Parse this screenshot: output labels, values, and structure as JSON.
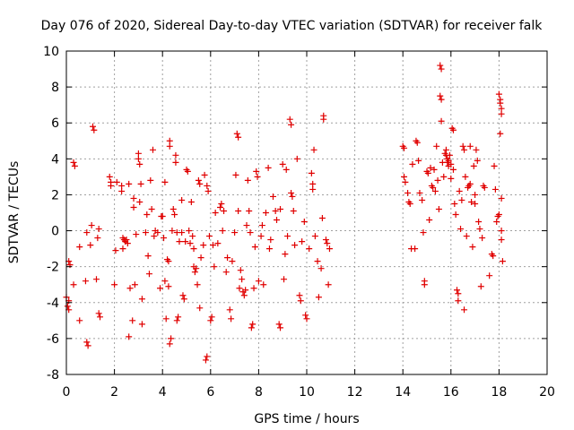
{
  "chart_data": {
    "type": "scatter",
    "title": "Day 076 of 2020, Sidereal Day-to-day VTEC variation (SDTVAR) for receiver falk",
    "xlabel": "GPS time / hours",
    "ylabel": "SDTVAR / TECUs",
    "xlim": [
      0,
      20
    ],
    "ylim": [
      -8,
      10
    ],
    "xticks": [
      "0",
      "2",
      "4",
      "6",
      "8",
      "10",
      "12",
      "14",
      "16",
      "18",
      "20"
    ],
    "yticks": [
      "-8",
      "-6",
      "-4",
      "-2",
      "0",
      "2",
      "4",
      "6",
      "8",
      "10"
    ],
    "grid": true,
    "marker": "+",
    "color": "#e00000",
    "points": [
      [
        0.0,
        -3.7
      ],
      [
        0.05,
        -4.2
      ],
      [
        0.1,
        -4.4
      ],
      [
        0.1,
        -1.7
      ],
      [
        0.15,
        -1.9
      ],
      [
        0.1,
        -3.9
      ],
      [
        0.3,
        3.8
      ],
      [
        0.35,
        3.6
      ],
      [
        0.3,
        -3.0
      ],
      [
        0.55,
        -5.0
      ],
      [
        0.55,
        -0.9
      ],
      [
        0.8,
        -2.8
      ],
      [
        0.85,
        -6.2
      ],
      [
        0.9,
        -6.4
      ],
      [
        0.85,
        -0.1
      ],
      [
        1.0,
        -0.8
      ],
      [
        1.05,
        0.3
      ],
      [
        1.1,
        5.8
      ],
      [
        1.15,
        5.6
      ],
      [
        1.25,
        -2.7
      ],
      [
        1.3,
        -0.4
      ],
      [
        1.35,
        0.1
      ],
      [
        1.35,
        -4.6
      ],
      [
        1.4,
        -4.8
      ],
      [
        1.8,
        3.0
      ],
      [
        1.85,
        2.7
      ],
      [
        1.85,
        2.5
      ],
      [
        2.0,
        -3.0
      ],
      [
        2.05,
        -1.1
      ],
      [
        2.1,
        2.7
      ],
      [
        2.3,
        2.2
      ],
      [
        2.3,
        2.5
      ],
      [
        2.35,
        -1.0
      ],
      [
        2.35,
        -0.4
      ],
      [
        2.4,
        -0.5
      ],
      [
        2.45,
        -0.6
      ],
      [
        2.5,
        -0.5
      ],
      [
        2.55,
        -0.7
      ],
      [
        2.6,
        2.6
      ],
      [
        2.65,
        -3.2
      ],
      [
        2.6,
        -5.9
      ],
      [
        2.75,
        -5.0
      ],
      [
        2.8,
        1.8
      ],
      [
        2.8,
        1.3
      ],
      [
        2.85,
        -3.0
      ],
      [
        2.9,
        -0.2
      ],
      [
        3.0,
        4.3
      ],
      [
        3.0,
        4.0
      ],
      [
        3.05,
        3.7
      ],
      [
        3.05,
        1.6
      ],
      [
        3.1,
        2.6
      ],
      [
        3.15,
        -5.2
      ],
      [
        3.15,
        -3.8
      ],
      [
        3.3,
        -0.1
      ],
      [
        3.4,
        -1.4
      ],
      [
        3.35,
        0.9
      ],
      [
        3.45,
        -2.4
      ],
      [
        3.5,
        2.8
      ],
      [
        3.55,
        1.2
      ],
      [
        3.6,
        4.5
      ],
      [
        3.65,
        -0.3
      ],
      [
        3.7,
        0.0
      ],
      [
        3.8,
        -0.1
      ],
      [
        3.9,
        -3.2
      ],
      [
        3.95,
        0.8
      ],
      [
        4.0,
        0.8
      ],
      [
        4.05,
        -0.4
      ],
      [
        4.1,
        -2.8
      ],
      [
        4.1,
        2.7
      ],
      [
        4.15,
        -4.9
      ],
      [
        4.2,
        -1.6
      ],
      [
        4.25,
        -1.7
      ],
      [
        4.25,
        -3.1
      ],
      [
        4.3,
        5.0
      ],
      [
        4.3,
        4.7
      ],
      [
        4.35,
        -6.0
      ],
      [
        4.3,
        -6.3
      ],
      [
        4.4,
        0.0
      ],
      [
        4.45,
        1.2
      ],
      [
        4.5,
        0.9
      ],
      [
        4.55,
        4.2
      ],
      [
        4.55,
        3.8
      ],
      [
        4.6,
        -5.0
      ],
      [
        4.65,
        -4.8
      ],
      [
        4.6,
        -0.1
      ],
      [
        4.7,
        -0.6
      ],
      [
        4.8,
        -0.1
      ],
      [
        4.8,
        1.7
      ],
      [
        4.85,
        -3.6
      ],
      [
        4.9,
        -3.8
      ],
      [
        4.95,
        -0.6
      ],
      [
        5.0,
        3.4
      ],
      [
        5.05,
        3.3
      ],
      [
        5.1,
        0.0
      ],
      [
        5.15,
        -0.7
      ],
      [
        5.2,
        1.6
      ],
      [
        5.25,
        -0.3
      ],
      [
        5.3,
        -1.0
      ],
      [
        5.3,
        -2.0
      ],
      [
        5.35,
        -2.3
      ],
      [
        5.4,
        -2.1
      ],
      [
        5.45,
        -3.0
      ],
      [
        5.5,
        2.8
      ],
      [
        5.55,
        2.6
      ],
      [
        5.55,
        -4.3
      ],
      [
        5.6,
        -1.5
      ],
      [
        5.7,
        -0.8
      ],
      [
        5.75,
        3.1
      ],
      [
        5.8,
        -7.2
      ],
      [
        5.85,
        -7.0
      ],
      [
        5.85,
        2.5
      ],
      [
        5.9,
        2.2
      ],
      [
        5.95,
        -0.3
      ],
      [
        6.0,
        -5.0
      ],
      [
        6.05,
        -4.8
      ],
      [
        6.1,
        -0.8
      ],
      [
        6.15,
        -2.0
      ],
      [
        6.2,
        1.0
      ],
      [
        6.3,
        -0.7
      ],
      [
        6.4,
        1.3
      ],
      [
        6.45,
        1.5
      ],
      [
        6.5,
        0.0
      ],
      [
        6.55,
        1.1
      ],
      [
        6.65,
        -2.3
      ],
      [
        6.7,
        -1.5
      ],
      [
        6.8,
        -4.4
      ],
      [
        6.85,
        -4.9
      ],
      [
        6.9,
        -1.7
      ],
      [
        7.0,
        -0.1
      ],
      [
        7.05,
        3.1
      ],
      [
        7.1,
        5.4
      ],
      [
        7.15,
        5.2
      ],
      [
        7.15,
        1.1
      ],
      [
        7.2,
        -3.2
      ],
      [
        7.25,
        -2.2
      ],
      [
        7.3,
        -2.7
      ],
      [
        7.35,
        -3.4
      ],
      [
        7.4,
        -3.6
      ],
      [
        7.45,
        -3.3
      ],
      [
        7.5,
        0.3
      ],
      [
        7.55,
        2.8
      ],
      [
        7.6,
        1.1
      ],
      [
        7.65,
        -0.1
      ],
      [
        7.7,
        -5.4
      ],
      [
        7.75,
        -5.2
      ],
      [
        7.8,
        -3.2
      ],
      [
        7.85,
        -0.9
      ],
      [
        7.9,
        3.3
      ],
      [
        7.95,
        3.0
      ],
      [
        8.0,
        -2.8
      ],
      [
        8.1,
        -0.3
      ],
      [
        8.15,
        0.3
      ],
      [
        8.2,
        -3.0
      ],
      [
        8.3,
        1.0
      ],
      [
        8.4,
        3.5
      ],
      [
        8.45,
        -1.0
      ],
      [
        8.5,
        -0.5
      ],
      [
        8.6,
        1.9
      ],
      [
        8.7,
        1.1
      ],
      [
        8.75,
        0.6
      ],
      [
        8.85,
        -5.2
      ],
      [
        8.9,
        -5.4
      ],
      [
        8.9,
        1.2
      ],
      [
        9.0,
        3.7
      ],
      [
        9.05,
        -2.7
      ],
      [
        9.1,
        -1.3
      ],
      [
        9.15,
        3.4
      ],
      [
        9.2,
        -0.3
      ],
      [
        9.3,
        6.2
      ],
      [
        9.35,
        5.9
      ],
      [
        9.35,
        2.1
      ],
      [
        9.4,
        1.9
      ],
      [
        9.45,
        1.1
      ],
      [
        9.5,
        -0.8
      ],
      [
        9.6,
        4.0
      ],
      [
        9.7,
        -3.6
      ],
      [
        9.75,
        -3.9
      ],
      [
        9.8,
        -0.6
      ],
      [
        9.9,
        0.5
      ],
      [
        9.95,
        -4.7
      ],
      [
        10.0,
        -4.9
      ],
      [
        10.1,
        -1.0
      ],
      [
        10.2,
        3.2
      ],
      [
        10.25,
        2.6
      ],
      [
        10.25,
        2.3
      ],
      [
        10.3,
        4.5
      ],
      [
        10.35,
        -0.3
      ],
      [
        10.45,
        -1.7
      ],
      [
        10.5,
        -3.7
      ],
      [
        10.6,
        -2.1
      ],
      [
        10.65,
        0.7
      ],
      [
        10.7,
        6.4
      ],
      [
        10.7,
        6.2
      ],
      [
        10.8,
        -0.5
      ],
      [
        10.85,
        -0.7
      ],
      [
        10.9,
        -3.0
      ],
      [
        10.95,
        -1.0
      ],
      [
        14.0,
        4.7
      ],
      [
        14.05,
        4.6
      ],
      [
        14.05,
        3.0
      ],
      [
        14.1,
        2.7
      ],
      [
        14.2,
        2.1
      ],
      [
        14.25,
        1.6
      ],
      [
        14.3,
        1.5
      ],
      [
        14.35,
        -1.0
      ],
      [
        14.4,
        3.7
      ],
      [
        14.5,
        -1.0
      ],
      [
        14.55,
        5.0
      ],
      [
        14.6,
        4.9
      ],
      [
        14.65,
        3.9
      ],
      [
        14.7,
        2.1
      ],
      [
        14.8,
        1.7
      ],
      [
        14.85,
        -0.1
      ],
      [
        14.9,
        -3.0
      ],
      [
        14.9,
        -2.8
      ],
      [
        15.0,
        3.3
      ],
      [
        15.05,
        3.2
      ],
      [
        15.1,
        0.6
      ],
      [
        15.15,
        3.5
      ],
      [
        15.2,
        2.5
      ],
      [
        15.25,
        2.4
      ],
      [
        15.3,
        3.4
      ],
      [
        15.35,
        2.2
      ],
      [
        15.4,
        4.7
      ],
      [
        15.45,
        2.8
      ],
      [
        15.5,
        1.2
      ],
      [
        15.55,
        9.2
      ],
      [
        15.6,
        9.0
      ],
      [
        15.55,
        7.5
      ],
      [
        15.6,
        7.3
      ],
      [
        15.6,
        6.1
      ],
      [
        15.65,
        3.8
      ],
      [
        15.7,
        3.0
      ],
      [
        15.75,
        4.3
      ],
      [
        15.8,
        4.5
      ],
      [
        15.8,
        4.2
      ],
      [
        15.85,
        4.0
      ],
      [
        15.85,
        3.8
      ],
      [
        15.9,
        3.9
      ],
      [
        15.9,
        3.6
      ],
      [
        15.95,
        4.2
      ],
      [
        16.0,
        3.7
      ],
      [
        16.0,
        2.9
      ],
      [
        16.05,
        5.7
      ],
      [
        16.1,
        5.6
      ],
      [
        16.1,
        3.4
      ],
      [
        16.15,
        1.5
      ],
      [
        16.2,
        0.9
      ],
      [
        16.25,
        -3.3
      ],
      [
        16.3,
        -3.5
      ],
      [
        16.3,
        -3.9
      ],
      [
        16.35,
        2.2
      ],
      [
        16.4,
        0.1
      ],
      [
        16.45,
        1.7
      ],
      [
        16.5,
        4.7
      ],
      [
        16.55,
        4.5
      ],
      [
        16.55,
        -4.4
      ],
      [
        16.6,
        3.0
      ],
      [
        16.65,
        -0.3
      ],
      [
        16.7,
        2.4
      ],
      [
        16.75,
        2.5
      ],
      [
        16.8,
        4.7
      ],
      [
        16.8,
        2.6
      ],
      [
        16.85,
        1.6
      ],
      [
        16.9,
        -0.9
      ],
      [
        16.95,
        3.6
      ],
      [
        17.0,
        1.5
      ],
      [
        17.0,
        2.0
      ],
      [
        17.05,
        4.5
      ],
      [
        17.1,
        3.9
      ],
      [
        17.15,
        0.5
      ],
      [
        17.2,
        0.1
      ],
      [
        17.25,
        -3.1
      ],
      [
        17.3,
        -0.4
      ],
      [
        17.35,
        2.5
      ],
      [
        17.4,
        2.4
      ],
      [
        17.6,
        -2.5
      ],
      [
        17.7,
        -1.3
      ],
      [
        17.75,
        -1.4
      ],
      [
        17.8,
        3.6
      ],
      [
        17.85,
        2.3
      ],
      [
        17.9,
        0.5
      ],
      [
        17.95,
        0.8
      ],
      [
        18.0,
        0.9
      ],
      [
        18.0,
        7.6
      ],
      [
        18.05,
        7.3
      ],
      [
        18.05,
        7.1
      ],
      [
        18.1,
        6.8
      ],
      [
        18.1,
        6.5
      ],
      [
        18.05,
        5.4
      ],
      [
        18.1,
        1.8
      ],
      [
        18.1,
        0.0
      ],
      [
        18.1,
        -0.5
      ],
      [
        18.15,
        -1.7
      ]
    ]
  }
}
